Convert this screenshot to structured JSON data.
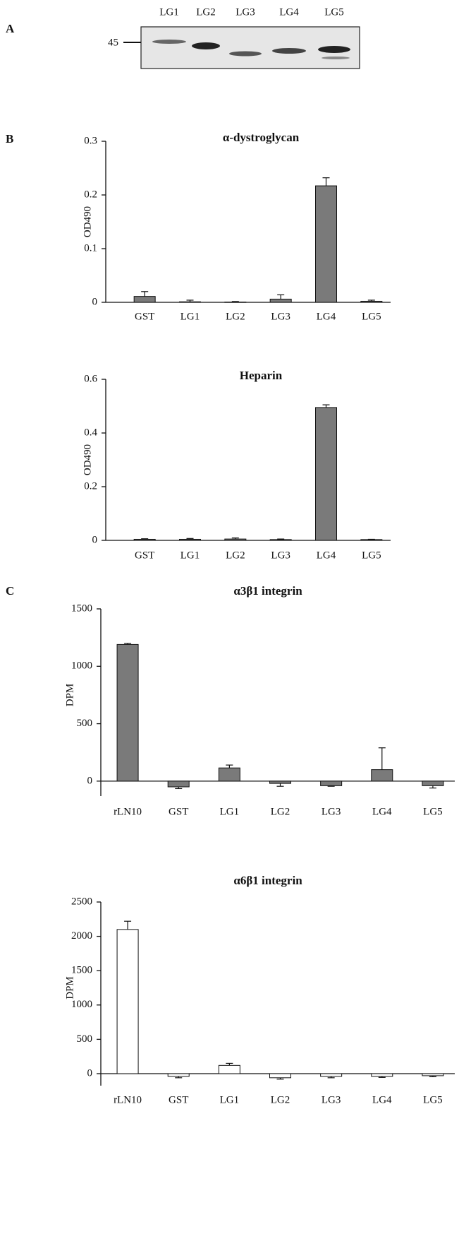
{
  "panels": [
    "A",
    "B",
    "C"
  ],
  "blot": {
    "lanes": [
      "LG1",
      "LG2",
      "LG3",
      "LG4",
      "LG5"
    ],
    "marker": "45"
  },
  "chart_data": [
    {
      "type": "bar",
      "title": "α-dystroglycan",
      "y_label": "OD490",
      "categories": [
        "GST",
        "LG1",
        "LG2",
        "LG3",
        "LG4",
        "LG5"
      ],
      "series": [
        {
          "color": "#7a7a7a",
          "values": [
            0.011,
            0.001,
            0.0005,
            0.006,
            0.217,
            0.002
          ],
          "errors": [
            0.009,
            0.003,
            0.001,
            0.008,
            0.015,
            0.002
          ]
        }
      ],
      "ylim": [
        0,
        0.3
      ],
      "yticks": [
        0,
        0.1,
        0.2,
        0.3
      ]
    },
    {
      "type": "bar",
      "title": "Heparin",
      "y_label": "OD490",
      "categories": [
        "GST",
        "LG1",
        "LG2",
        "LG3",
        "LG4",
        "LG5"
      ],
      "series": [
        {
          "color": "#7a7a7a",
          "values": [
            0.004,
            0.004,
            0.005,
            0.003,
            0.495,
            0.003
          ],
          "errors": [
            0.002,
            0.003,
            0.004,
            0.002,
            0.01,
            0.001
          ]
        }
      ],
      "ylim": [
        0,
        0.6
      ],
      "yticks": [
        0,
        0.2,
        0.4,
        0.6
      ]
    },
    {
      "type": "bar",
      "title": "α3β1 integrin",
      "y_label": "DPM",
      "categories": [
        "rLN10",
        "GST",
        "LG1",
        "LG2",
        "LG3",
        "LG4",
        "LG5"
      ],
      "series": [
        {
          "color": "#7a7a7a",
          "values": [
            1190,
            -50,
            115,
            -20,
            -40,
            100,
            -40
          ],
          "errors": [
            10,
            15,
            25,
            25,
            5,
            190,
            20
          ]
        }
      ],
      "ylim": [
        -130,
        1500
      ],
      "yticks": [
        0,
        500,
        1000,
        1500
      ]
    },
    {
      "type": "bar",
      "title": "α6β1 integrin",
      "y_label": "DPM",
      "categories": [
        "rLN10",
        "GST",
        "LG1",
        "LG2",
        "LG3",
        "LG4",
        "LG5"
      ],
      "series": [
        {
          "color": "#ffffff",
          "values": [
            2100,
            -40,
            120,
            -60,
            -40,
            -40,
            -30
          ],
          "errors": [
            120,
            20,
            30,
            20,
            20,
            15,
            15
          ]
        }
      ],
      "ylim": [
        -175,
        2500
      ],
      "yticks": [
        0,
        500,
        1000,
        1500,
        2000,
        2500
      ]
    }
  ]
}
